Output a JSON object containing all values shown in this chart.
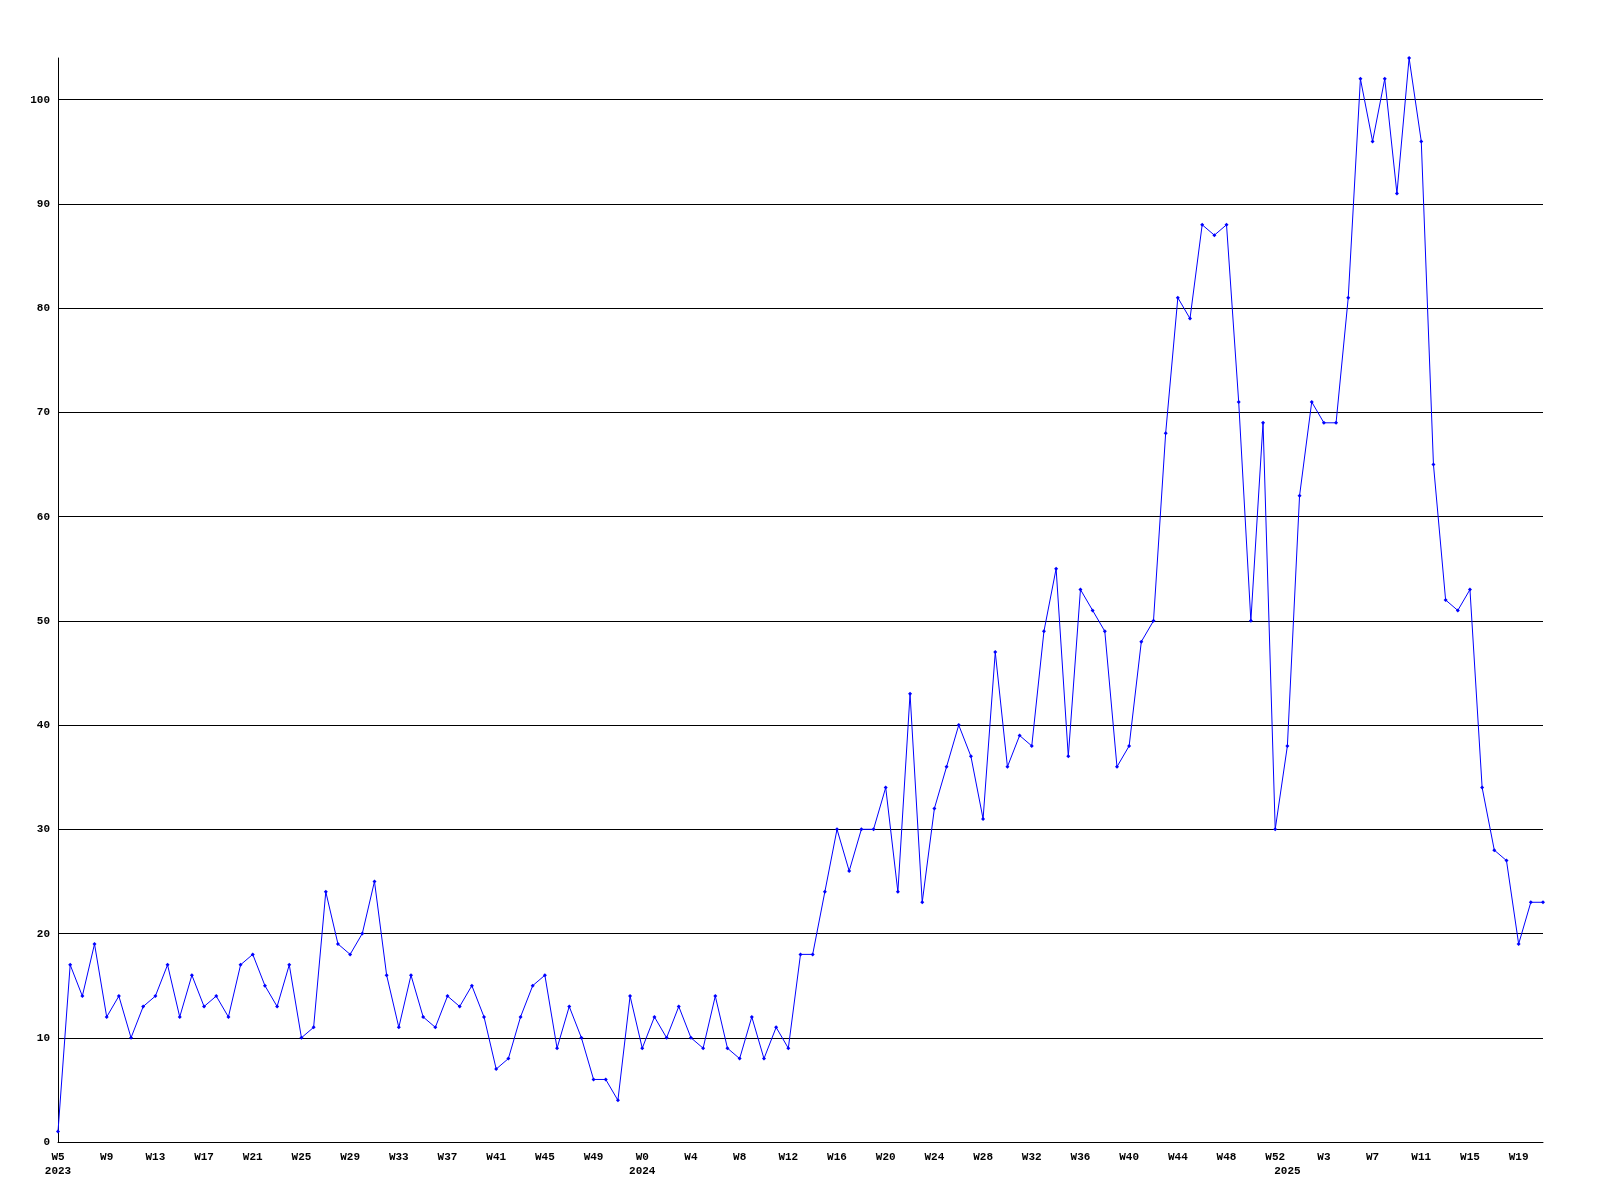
{
  "chart_data": {
    "type": "line",
    "categories": [
      "W5\n2023",
      null,
      null,
      null,
      "W9",
      null,
      null,
      null,
      "W13",
      null,
      null,
      null,
      "W17",
      null,
      null,
      null,
      "W21",
      null,
      null,
      null,
      "W25",
      null,
      null,
      null,
      "W29",
      null,
      null,
      null,
      "W33",
      null,
      null,
      null,
      "W37",
      null,
      null,
      null,
      "W41",
      null,
      null,
      null,
      "W45",
      null,
      null,
      null,
      "W49",
      null,
      null,
      null,
      "W0\n2024",
      null,
      null,
      null,
      "W4",
      null,
      null,
      null,
      "W8",
      null,
      null,
      null,
      "W12",
      null,
      null,
      null,
      "W16",
      null,
      null,
      null,
      "W20",
      null,
      null,
      null,
      "W24",
      null,
      null,
      null,
      "W28",
      null,
      null,
      null,
      "W32",
      null,
      null,
      null,
      "W36",
      null,
      null,
      null,
      "W40",
      null,
      null,
      null,
      "W44",
      null,
      null,
      null,
      "W48",
      null,
      null,
      null,
      "W52",
      "\n2025",
      null,
      null,
      "W3",
      null,
      null,
      null,
      "W7",
      null,
      null,
      null,
      "W11",
      null,
      null,
      null,
      "W15",
      null,
      null,
      null,
      "W19",
      null,
      null
    ],
    "series": [
      {
        "color": "#0000ff",
        "values": [
          1,
          17,
          14,
          19,
          12,
          14,
          10,
          13,
          14,
          17,
          12,
          16,
          13,
          14,
          12,
          17,
          18,
          15,
          13,
          17,
          10,
          11,
          24,
          19,
          18,
          20,
          25,
          16,
          11,
          16,
          12,
          11,
          14,
          13,
          15,
          12,
          7,
          8,
          12,
          15,
          16,
          9,
          13,
          10,
          6,
          6,
          4,
          14,
          9,
          12,
          10,
          13,
          10,
          9,
          14,
          9,
          8,
          12,
          8,
          11,
          9,
          18,
          18,
          24,
          30,
          26,
          30,
          30,
          34,
          24,
          43,
          23,
          32,
          36,
          40,
          37,
          31,
          47,
          36,
          39,
          38,
          49,
          55,
          37,
          53,
          51,
          49,
          36,
          38,
          48,
          50,
          68,
          81,
          79,
          88,
          87,
          88,
          71,
          50,
          69,
          30,
          38,
          62,
          71,
          69,
          69,
          81,
          102,
          96,
          102,
          91,
          104,
          96,
          65,
          52,
          51,
          53,
          34,
          28,
          27,
          19,
          23,
          23
        ]
      }
    ],
    "ylim": [
      0,
      104
    ],
    "yticks": [
      0,
      10,
      20,
      30,
      40,
      50,
      60,
      70,
      80,
      90,
      100
    ],
    "grid": "y",
    "marker": "diamond",
    "line_style": "solid"
  }
}
